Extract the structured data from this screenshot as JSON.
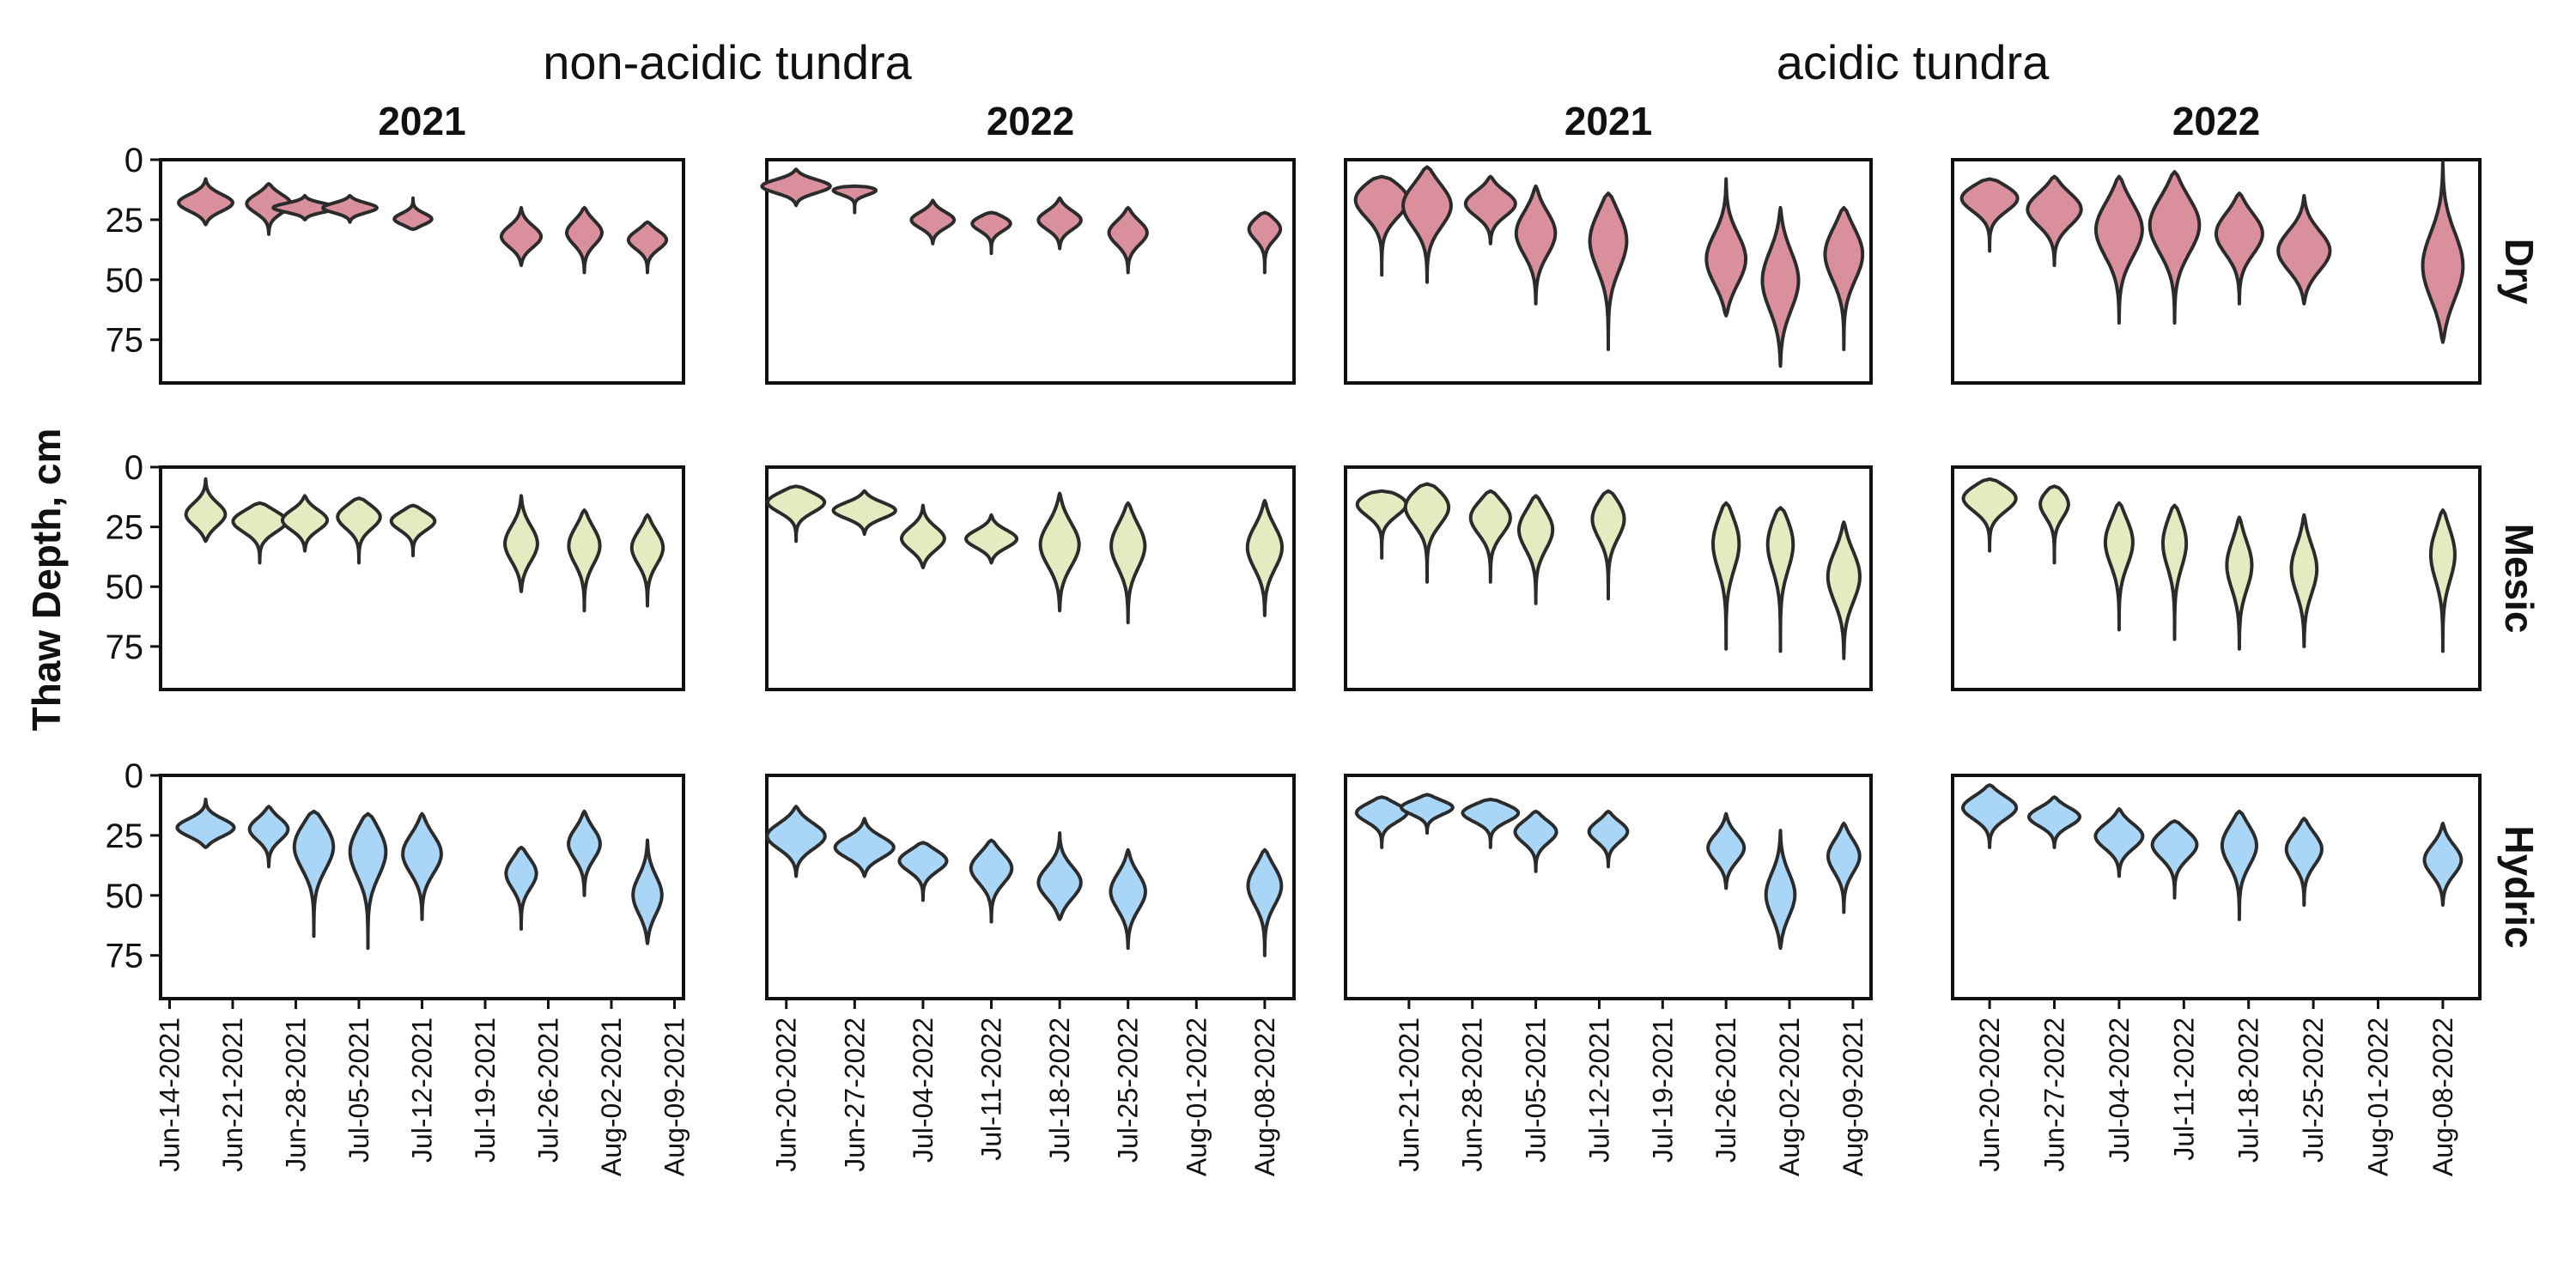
{
  "chart_data": {
    "type": "violin",
    "ylabel": "Thaw Depth, cm",
    "yticks": [
      0,
      25,
      50,
      75
    ],
    "ylim": [
      0,
      93
    ],
    "y_reversed": true,
    "row_labels": [
      "Dry",
      "Mesic",
      "Hydric"
    ],
    "colors": {
      "Dry": "#d98f9c",
      "Mesic": "#e2ecc0",
      "Hydric": "#a9d6f7"
    },
    "groups": [
      {
        "title": "non-acidic tundra",
        "panels": [
          0,
          1
        ]
      },
      {
        "title": "acidic tundra",
        "panels": [
          2,
          3
        ]
      }
    ],
    "panels": [
      {
        "year": "2021",
        "x_range": [
          "2021-06-13",
          "2021-08-10"
        ],
        "xticks": [
          "2021-06-14",
          "2021-06-21",
          "2021-06-28",
          "2021-07-05",
          "2021-07-12",
          "2021-07-19",
          "2021-07-26",
          "2021-08-02",
          "2021-08-09"
        ],
        "xtick_labels": [
          "Jun-14-2021",
          "Jun-21-2021",
          "Jun-28-2021",
          "Jul-05-2021",
          "Jul-12-2021",
          "Jul-19-2021",
          "Jul-26-2021",
          "Aug-02-2021",
          "Aug-09-2021"
        ],
        "rows": {
          "Dry": [
            {
              "date": "2021-06-18",
              "min": 8,
              "max": 27,
              "peak": 18,
              "width": 3
            },
            {
              "date": "2021-06-25",
              "min": 10,
              "max": 31,
              "peak": 18,
              "width": 2.5
            },
            {
              "date": "2021-06-29",
              "min": 15,
              "max": 25,
              "peak": 20,
              "width": 3.5
            },
            {
              "date": "2021-07-04",
              "min": 15,
              "max": 26,
              "peak": 20,
              "width": 3
            },
            {
              "date": "2021-07-11",
              "min": 16,
              "max": 29,
              "peak": 25,
              "width": 2.2
            },
            {
              "date": "2021-07-23",
              "min": 20,
              "max": 44,
              "peak": 32,
              "width": 2.2
            },
            {
              "date": "2021-07-30",
              "min": 20,
              "max": 47,
              "peak": 30,
              "width": 2
            },
            {
              "date": "2021-08-06",
              "min": 26,
              "max": 47,
              "peak": 33,
              "width": 2.2
            }
          ],
          "Mesic": [
            {
              "date": "2021-06-18",
              "min": 5,
              "max": 31,
              "peak": 20,
              "width": 2.2
            },
            {
              "date": "2021-06-24",
              "min": 15,
              "max": 40,
              "peak": 22,
              "width": 3.2
            },
            {
              "date": "2021-06-29",
              "min": 12,
              "max": 35,
              "peak": 22,
              "width": 2.5
            },
            {
              "date": "2021-07-05",
              "min": 13,
              "max": 40,
              "peak": 20,
              "width": 2.6
            },
            {
              "date": "2021-07-11",
              "min": 16,
              "max": 37,
              "peak": 22,
              "width": 2.6
            },
            {
              "date": "2021-07-23",
              "min": 12,
              "max": 52,
              "peak": 32,
              "width": 1.8
            },
            {
              "date": "2021-07-30",
              "min": 18,
              "max": 60,
              "peak": 32,
              "width": 1.8
            },
            {
              "date": "2021-08-06",
              "min": 20,
              "max": 58,
              "peak": 33,
              "width": 1.8
            }
          ],
          "Hydric": [
            {
              "date": "2021-06-18",
              "min": 10,
              "max": 30,
              "peak": 22,
              "width": 3.2
            },
            {
              "date": "2021-06-25",
              "min": 13,
              "max": 38,
              "peak": 22,
              "width": 2.2
            },
            {
              "date": "2021-06-30",
              "min": 15,
              "max": 67,
              "peak": 28,
              "width": 2.4
            },
            {
              "date": "2021-07-06",
              "min": 16,
              "max": 72,
              "peak": 30,
              "width": 2.2
            },
            {
              "date": "2021-07-12",
              "min": 16,
              "max": 60,
              "peak": 32,
              "width": 2.2
            },
            {
              "date": "2021-07-23",
              "min": 30,
              "max": 64,
              "peak": 40,
              "width": 1.8
            },
            {
              "date": "2021-07-30",
              "min": 15,
              "max": 50,
              "peak": 28,
              "width": 1.8
            },
            {
              "date": "2021-08-06",
              "min": 27,
              "max": 70,
              "peak": 50,
              "width": 1.6
            }
          ]
        }
      },
      {
        "year": "2022",
        "x_range": [
          "2022-06-18",
          "2022-08-11"
        ],
        "xticks": [
          "2022-06-20",
          "2022-06-27",
          "2022-07-04",
          "2022-07-11",
          "2022-07-18",
          "2022-07-25",
          "2022-08-01",
          "2022-08-08"
        ],
        "xtick_labels": [
          "Jun-20-2022",
          "Jun-27-2022",
          "Jul-04-2022",
          "Jul-11-2022",
          "Jul-18-2022",
          "Jul-25-2022",
          "Aug-01-2022",
          "Aug-08-2022"
        ],
        "rows": {
          "Dry": [
            {
              "date": "2022-06-21",
              "min": 4,
              "max": 19,
              "peak": 11,
              "width": 3.5
            },
            {
              "date": "2022-06-27",
              "min": 11,
              "max": 22,
              "peak": 12,
              "width": 3
            },
            {
              "date": "2022-07-05",
              "min": 17,
              "max": 35,
              "peak": 25,
              "width": 2.2
            },
            {
              "date": "2022-07-11",
              "min": 22,
              "max": 39,
              "peak": 26,
              "width": 2.2
            },
            {
              "date": "2022-07-18",
              "min": 16,
              "max": 37,
              "peak": 25,
              "width": 2.2
            },
            {
              "date": "2022-07-25",
              "min": 20,
              "max": 47,
              "peak": 30,
              "width": 2
            },
            {
              "date": "2022-08-08",
              "min": 22,
              "max": 47,
              "peak": 28,
              "width": 1.8
            }
          ],
          "Mesic": [
            {
              "date": "2022-06-21",
              "min": 8,
              "max": 31,
              "peak": 14,
              "width": 3.2
            },
            {
              "date": "2022-06-28",
              "min": 10,
              "max": 28,
              "peak": 18,
              "width": 3.2
            },
            {
              "date": "2022-07-04",
              "min": 16,
              "max": 42,
              "peak": 30,
              "width": 2.2
            },
            {
              "date": "2022-07-11",
              "min": 20,
              "max": 40,
              "peak": 30,
              "width": 2.6
            },
            {
              "date": "2022-07-18",
              "min": 11,
              "max": 60,
              "peak": 32,
              "width": 2
            },
            {
              "date": "2022-07-25",
              "min": 15,
              "max": 65,
              "peak": 32,
              "width": 1.8
            },
            {
              "date": "2022-08-08",
              "min": 14,
              "max": 62,
              "peak": 33,
              "width": 1.8
            }
          ],
          "Hydric": [
            {
              "date": "2022-06-21",
              "min": 13,
              "max": 42,
              "peak": 25,
              "width": 3
            },
            {
              "date": "2022-06-28",
              "min": 18,
              "max": 42,
              "peak": 30,
              "width": 3
            },
            {
              "date": "2022-07-04",
              "min": 28,
              "max": 52,
              "peak": 35,
              "width": 2.6
            },
            {
              "date": "2022-07-11",
              "min": 27,
              "max": 61,
              "peak": 38,
              "width": 2.2
            },
            {
              "date": "2022-07-18",
              "min": 24,
              "max": 60,
              "peak": 45,
              "width": 2.2
            },
            {
              "date": "2022-07-25",
              "min": 31,
              "max": 72,
              "peak": 48,
              "width": 1.8
            },
            {
              "date": "2022-08-08",
              "min": 31,
              "max": 75,
              "peak": 45,
              "width": 1.8
            }
          ]
        }
      },
      {
        "year": "2021",
        "x_range": [
          "2021-06-14",
          "2021-08-11"
        ],
        "xticks": [
          "2021-06-21",
          "2021-06-28",
          "2021-07-05",
          "2021-07-12",
          "2021-07-19",
          "2021-07-26",
          "2021-08-02",
          "2021-08-09"
        ],
        "xtick_labels": [
          "Jun-21-2021",
          "Jun-28-2021",
          "Jul-05-2021",
          "Jul-12-2021",
          "Jul-19-2021",
          "Jul-26-2021",
          "Aug-02-2021",
          "Aug-09-2021"
        ],
        "rows": {
          "Dry": [
            {
              "date": "2021-06-18",
              "min": 7,
              "max": 48,
              "peak": 15,
              "width": 3.4
            },
            {
              "date": "2021-06-23",
              "min": 3,
              "max": 51,
              "peak": 18,
              "width": 2.8
            },
            {
              "date": "2021-06-30",
              "min": 7,
              "max": 35,
              "peak": 18,
              "width": 2.8
            },
            {
              "date": "2021-07-05",
              "min": 11,
              "max": 60,
              "peak": 30,
              "width": 2.2
            },
            {
              "date": "2021-07-13",
              "min": 14,
              "max": 79,
              "peak": 32,
              "width": 2.2
            },
            {
              "date": "2021-07-26",
              "min": 8,
              "max": 65,
              "peak": 42,
              "width": 2.2
            },
            {
              "date": "2021-08-01",
              "min": 20,
              "max": 86,
              "peak": 50,
              "width": 2
            },
            {
              "date": "2021-08-08",
              "min": 20,
              "max": 79,
              "peak": 38,
              "width": 2.2
            }
          ],
          "Mesic": [
            {
              "date": "2021-06-18",
              "min": 10,
              "max": 38,
              "peak": 14,
              "width": 3.4
            },
            {
              "date": "2021-06-23",
              "min": 7,
              "max": 48,
              "peak": 15,
              "width": 2.8
            },
            {
              "date": "2021-06-30",
              "min": 10,
              "max": 48,
              "peak": 20,
              "width": 2.4
            },
            {
              "date": "2021-07-05",
              "min": 12,
              "max": 57,
              "peak": 25,
              "width": 2
            },
            {
              "date": "2021-07-13",
              "min": 10,
              "max": 55,
              "peak": 20,
              "width": 2
            },
            {
              "date": "2021-07-26",
              "min": 15,
              "max": 76,
              "peak": 30,
              "width": 1.6
            },
            {
              "date": "2021-08-01",
              "min": 17,
              "max": 77,
              "peak": 30,
              "width": 1.6
            },
            {
              "date": "2021-08-08",
              "min": 23,
              "max": 80,
              "peak": 45,
              "width": 1.8
            }
          ],
          "Hydric": [
            {
              "date": "2021-06-18",
              "min": 9,
              "max": 30,
              "peak": 15,
              "width": 3
            },
            {
              "date": "2021-06-23",
              "min": 8,
              "max": 24,
              "peak": 13,
              "width": 3
            },
            {
              "date": "2021-06-30",
              "min": 10,
              "max": 30,
              "peak": 15,
              "width": 3.4
            },
            {
              "date": "2021-07-05",
              "min": 15,
              "max": 40,
              "peak": 23,
              "width": 2.4
            },
            {
              "date": "2021-07-13",
              "min": 15,
              "max": 38,
              "peak": 23,
              "width": 2.2
            },
            {
              "date": "2021-07-26",
              "min": 16,
              "max": 47,
              "peak": 30,
              "width": 2
            },
            {
              "date": "2021-08-01",
              "min": 23,
              "max": 72,
              "peak": 50,
              "width": 1.6
            },
            {
              "date": "2021-08-08",
              "min": 20,
              "max": 57,
              "peak": 33,
              "width": 1.8
            }
          ]
        }
      },
      {
        "year": "2022",
        "x_range": [
          "2022-06-16",
          "2022-08-12"
        ],
        "xticks": [
          "2022-06-20",
          "2022-06-27",
          "2022-07-04",
          "2022-07-11",
          "2022-07-18",
          "2022-07-25",
          "2022-08-01",
          "2022-08-08"
        ],
        "xtick_labels": [
          "Jun-20-2022",
          "Jun-27-2022",
          "Jul-04-2022",
          "Jul-11-2022",
          "Jul-18-2022",
          "Jul-25-2022",
          "Aug-01-2022",
          "Aug-08-2022"
        ],
        "rows": {
          "Dry": [
            {
              "date": "2022-06-20",
              "min": 8,
              "max": 38,
              "peak": 15,
              "width": 3.4
            },
            {
              "date": "2022-06-27",
              "min": 7,
              "max": 44,
              "peak": 20,
              "width": 3
            },
            {
              "date": "2022-07-04",
              "min": 7,
              "max": 68,
              "peak": 28,
              "width": 2.6
            },
            {
              "date": "2022-07-10",
              "min": 5,
              "max": 68,
              "peak": 26,
              "width": 2.8
            },
            {
              "date": "2022-07-17",
              "min": 14,
              "max": 60,
              "peak": 30,
              "width": 2.6
            },
            {
              "date": "2022-07-24",
              "min": 15,
              "max": 60,
              "peak": 38,
              "width": 2.8
            },
            {
              "date": "2022-08-08",
              "min": 1,
              "max": 76,
              "peak": 45,
              "width": 2.2
            }
          ],
          "Mesic": [
            {
              "date": "2022-06-20",
              "min": 5,
              "max": 35,
              "peak": 12,
              "width": 3.2
            },
            {
              "date": "2022-06-27",
              "min": 8,
              "max": 40,
              "peak": 14,
              "width": 1.8
            },
            {
              "date": "2022-07-04",
              "min": 15,
              "max": 68,
              "peak": 30,
              "width": 1.6
            },
            {
              "date": "2022-07-10",
              "min": 16,
              "max": 72,
              "peak": 30,
              "width": 1.4
            },
            {
              "date": "2022-07-17",
              "min": 21,
              "max": 76,
              "peak": 40,
              "width": 1.4
            },
            {
              "date": "2022-07-24",
              "min": 20,
              "max": 75,
              "peak": 42,
              "width": 1.4
            },
            {
              "date": "2022-08-08",
              "min": 18,
              "max": 77,
              "peak": 35,
              "width": 1.4
            }
          ],
          "Hydric": [
            {
              "date": "2022-06-20",
              "min": 4,
              "max": 30,
              "peak": 13,
              "width": 3
            },
            {
              "date": "2022-06-27",
              "min": 9,
              "max": 30,
              "peak": 17,
              "width": 2.8
            },
            {
              "date": "2022-07-04",
              "min": 14,
              "max": 42,
              "peak": 25,
              "width": 2.6
            },
            {
              "date": "2022-07-10",
              "min": 19,
              "max": 51,
              "peak": 28,
              "width": 2.6
            },
            {
              "date": "2022-07-17",
              "min": 15,
              "max": 60,
              "peak": 28,
              "width": 2
            },
            {
              "date": "2022-07-24",
              "min": 18,
              "max": 54,
              "peak": 30,
              "width": 2
            },
            {
              "date": "2022-08-08",
              "min": 20,
              "max": 54,
              "peak": 35,
              "width": 2
            }
          ]
        }
      }
    ]
  }
}
